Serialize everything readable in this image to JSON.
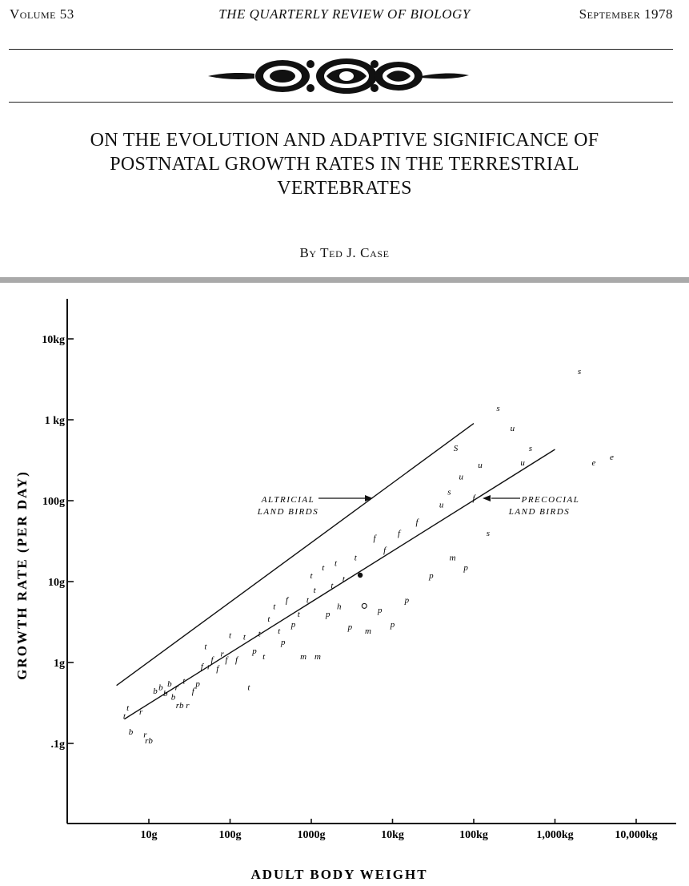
{
  "header": {
    "volume": "Volume 53",
    "journal": "THE QUARTERLY REVIEW OF BIOLOGY",
    "date": "September 1978"
  },
  "article": {
    "title_lines": [
      "ON THE EVOLUTION AND ADAPTIVE SIGNIFICANCE OF",
      "POSTNATAL GROWTH RATES IN THE TERRESTRIAL",
      "VERTEBRATES"
    ],
    "byline": "By Ted J. Case"
  },
  "chart_data": {
    "type": "scatter",
    "title": "",
    "xlabel": "ADULT BODY WEIGHT",
    "ylabel": "GROWTH RATE (PER DAY)",
    "x_scale": "log",
    "y_scale": "log",
    "x_unit": "g",
    "y_unit": "g",
    "xlim": [
      1.8,
      16000000
    ],
    "ylim": [
      0.01,
      30000
    ],
    "x_ticks": [
      {
        "value": 10,
        "label": "10g"
      },
      {
        "value": 100,
        "label": "100g"
      },
      {
        "value": 1000,
        "label": "1000g"
      },
      {
        "value": 10000,
        "label": "10kg"
      },
      {
        "value": 100000,
        "label": "100kg"
      },
      {
        "value": 1000000,
        "label": "1,000kg"
      },
      {
        "value": 10000000,
        "label": "10,000kg"
      }
    ],
    "y_ticks": [
      {
        "value": 0.1,
        "label": ".1g"
      },
      {
        "value": 1,
        "label": "1g"
      },
      {
        "value": 10,
        "label": "10g"
      },
      {
        "value": 100,
        "label": "100g"
      },
      {
        "value": 1000,
        "label": "1 kg"
      },
      {
        "value": 10000,
        "label": "10kg"
      }
    ],
    "grid": false,
    "series": [
      {
        "name": "ALTRICIAL LAND BIRDS",
        "type": "line",
        "x": [
          4,
          100000
        ],
        "y": [
          0.52,
          900
        ]
      },
      {
        "name": "PRECOCIAL LAND BIRDS",
        "type": "line",
        "x": [
          5,
          1000000
        ],
        "y": [
          0.2,
          430
        ]
      }
    ],
    "annotations": [
      {
        "lines": [
          "ALTRICIAL",
          "LAND BIRDS"
        ]
      },
      {
        "lines": [
          "PRECOCIAL",
          "LAND BIRDS"
        ]
      }
    ],
    "points": [
      {
        "x": 5,
        "y": 0.22,
        "label": "t"
      },
      {
        "x": 5.5,
        "y": 0.28,
        "label": "t"
      },
      {
        "x": 6,
        "y": 0.14,
        "label": "b"
      },
      {
        "x": 8,
        "y": 0.25,
        "label": "r"
      },
      {
        "x": 9,
        "y": 0.13,
        "label": "r"
      },
      {
        "x": 10,
        "y": 0.11,
        "label": "rb"
      },
      {
        "x": 12,
        "y": 0.45,
        "label": "b"
      },
      {
        "x": 14,
        "y": 0.5,
        "label": "b"
      },
      {
        "x": 16,
        "y": 0.42,
        "label": "b"
      },
      {
        "x": 18,
        "y": 0.55,
        "label": "b"
      },
      {
        "x": 20,
        "y": 0.38,
        "label": "b"
      },
      {
        "x": 22,
        "y": 0.5,
        "label": "r"
      },
      {
        "x": 24,
        "y": 0.3,
        "label": "rb"
      },
      {
        "x": 27,
        "y": 0.6,
        "label": "t"
      },
      {
        "x": 30,
        "y": 0.3,
        "label": "r"
      },
      {
        "x": 35,
        "y": 0.45,
        "label": "f"
      },
      {
        "x": 40,
        "y": 0.55,
        "label": "p"
      },
      {
        "x": 45,
        "y": 0.9,
        "label": "f"
      },
      {
        "x": 50,
        "y": 1.6,
        "label": "t"
      },
      {
        "x": 55,
        "y": 0.9,
        "label": "r"
      },
      {
        "x": 60,
        "y": 1.1,
        "label": "f"
      },
      {
        "x": 70,
        "y": 0.85,
        "label": "f"
      },
      {
        "x": 80,
        "y": 1.3,
        "label": "r"
      },
      {
        "x": 90,
        "y": 1.1,
        "label": "f"
      },
      {
        "x": 100,
        "y": 2.2,
        "label": "t"
      },
      {
        "x": 120,
        "y": 1.1,
        "label": "f"
      },
      {
        "x": 150,
        "y": 2.1,
        "label": "t"
      },
      {
        "x": 170,
        "y": 0.5,
        "label": "t"
      },
      {
        "x": 200,
        "y": 1.4,
        "label": "p"
      },
      {
        "x": 230,
        "y": 2.3,
        "label": "t"
      },
      {
        "x": 260,
        "y": 1.2,
        "label": "t"
      },
      {
        "x": 300,
        "y": 3.5,
        "label": "t"
      },
      {
        "x": 350,
        "y": 5,
        "label": "t"
      },
      {
        "x": 400,
        "y": 2.5,
        "label": "t"
      },
      {
        "x": 450,
        "y": 1.8,
        "label": "p"
      },
      {
        "x": 500,
        "y": 6,
        "label": "f"
      },
      {
        "x": 600,
        "y": 3,
        "label": "p"
      },
      {
        "x": 700,
        "y": 4,
        "label": "t"
      },
      {
        "x": 800,
        "y": 1.2,
        "label": "m"
      },
      {
        "x": 900,
        "y": 6,
        "label": "t"
      },
      {
        "x": 1000,
        "y": 12,
        "label": "t"
      },
      {
        "x": 1100,
        "y": 8,
        "label": "t"
      },
      {
        "x": 1200,
        "y": 1.2,
        "label": "m"
      },
      {
        "x": 1400,
        "y": 15,
        "label": "t"
      },
      {
        "x": 1600,
        "y": 4,
        "label": "p"
      },
      {
        "x": 1800,
        "y": 9,
        "label": "t"
      },
      {
        "x": 2000,
        "y": 17,
        "label": "t"
      },
      {
        "x": 2200,
        "y": 5,
        "label": "h"
      },
      {
        "x": 2500,
        "y": 11,
        "label": "t"
      },
      {
        "x": 3000,
        "y": 2.8,
        "label": "p"
      },
      {
        "x": 3500,
        "y": 20,
        "label": "t"
      },
      {
        "x": 4000,
        "y": 12,
        "label": "filled-dot"
      },
      {
        "x": 4500,
        "y": 5,
        "label": "open-dot"
      },
      {
        "x": 5000,
        "y": 2.5,
        "label": "m"
      },
      {
        "x": 6000,
        "y": 35,
        "label": "f"
      },
      {
        "x": 7000,
        "y": 4.5,
        "label": "p"
      },
      {
        "x": 8000,
        "y": 25,
        "label": "f"
      },
      {
        "x": 10000,
        "y": 3,
        "label": "p"
      },
      {
        "x": 12000,
        "y": 40,
        "label": "f"
      },
      {
        "x": 15000,
        "y": 6,
        "label": "p"
      },
      {
        "x": 20000,
        "y": 55,
        "label": "f"
      },
      {
        "x": 30000,
        "y": 12,
        "label": "p"
      },
      {
        "x": 40000,
        "y": 90,
        "label": "u"
      },
      {
        "x": 50000,
        "y": 130,
        "label": "s"
      },
      {
        "x": 55000,
        "y": 20,
        "label": "m"
      },
      {
        "x": 60000,
        "y": 450,
        "label": "S"
      },
      {
        "x": 70000,
        "y": 200,
        "label": "u"
      },
      {
        "x": 80000,
        "y": 15,
        "label": "p"
      },
      {
        "x": 100000,
        "y": 110,
        "label": "f"
      },
      {
        "x": 120000,
        "y": 280,
        "label": "u"
      },
      {
        "x": 150000,
        "y": 40,
        "label": "s"
      },
      {
        "x": 200000,
        "y": 1400,
        "label": "s"
      },
      {
        "x": 300000,
        "y": 800,
        "label": "u"
      },
      {
        "x": 400000,
        "y": 300,
        "label": "u"
      },
      {
        "x": 500000,
        "y": 450,
        "label": "s"
      },
      {
        "x": 2000000,
        "y": 4000,
        "label": "s"
      },
      {
        "x": 3000000,
        "y": 300,
        "label": "e"
      },
      {
        "x": 5000000,
        "y": 350,
        "label": "e"
      }
    ]
  }
}
